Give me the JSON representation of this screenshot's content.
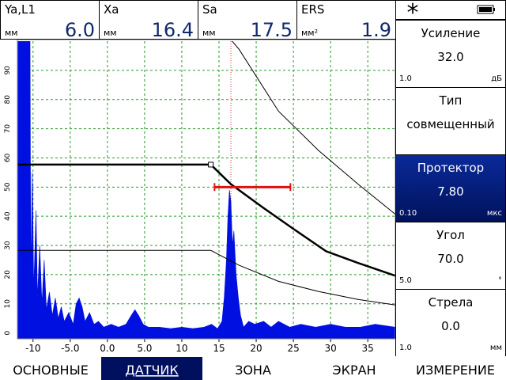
{
  "readouts": [
    {
      "label": "Ya,L1",
      "unit": "мм",
      "value": "6.0"
    },
    {
      "label": "Xa",
      "unit": "мм",
      "value": "16.4"
    },
    {
      "label": "Sa",
      "unit": "мм",
      "value": "17.5"
    },
    {
      "label": "ERS",
      "unit": "мм²",
      "value": "1.9"
    }
  ],
  "status_symbol": "*",
  "params": [
    {
      "title": "Усиление",
      "value": "32.0",
      "step": "1.0",
      "unit": "дБ"
    },
    {
      "title": "Тип",
      "value": "совмещенный"
    },
    {
      "title": "Протектор",
      "value": "7.80",
      "step": "0.10",
      "unit": "мкс",
      "selected": true
    },
    {
      "title": "Угол",
      "value": "70.0",
      "step": "5.0",
      "unit": "°"
    },
    {
      "title": "Стрела",
      "value": "0.0",
      "step": "1.0",
      "unit": "мм"
    }
  ],
  "menu": [
    {
      "label": "ОСНОВНЫЕ"
    },
    {
      "label": "ДАТЧИК",
      "selected": true
    },
    {
      "label": "ЗОНА"
    },
    {
      "label": "ЭКРАН"
    },
    {
      "label": "ИЗМЕРЕНИЕ"
    }
  ],
  "chart_data": {
    "type": "line",
    "xlim": [
      -12.1,
      38.7
    ],
    "ylim": [
      -2,
      100
    ],
    "xticks": [
      -10,
      {
        "value": -5,
        "label": "-5.0"
      },
      {
        "value": 0,
        "label": "0.0"
      },
      {
        "value": 5,
        "label": "5.0"
      },
      10,
      15,
      20,
      25,
      30,
      35
    ],
    "yticks": [
      0,
      10,
      20,
      30,
      40,
      50,
      60,
      70,
      80,
      90
    ],
    "grid": true,
    "cursor_x": 16.6,
    "cursor_color": "#e03030",
    "series": [
      {
        "type": "area",
        "color": "#0010e0",
        "x": [
          -12.1,
          -10.4,
          -10.3,
          -10.1,
          -9.9,
          -9.6,
          -9.4,
          -9.1,
          -8.8,
          -8.5,
          -8.2,
          -7.8,
          -7.4,
          -7,
          -6.6,
          -6.2,
          -5.8,
          -5.2,
          -4.6,
          -4.2,
          -3.8,
          -3.4,
          -3,
          -2.4,
          -1.8,
          -1.2,
          -0.5,
          0.5,
          1.5,
          2.5,
          3.2,
          3.7,
          4.2,
          4.8,
          5.5,
          7,
          8.5,
          10,
          11.5,
          13,
          14,
          14.8,
          15.4,
          15.7,
          16,
          16.2,
          16.4,
          16.6,
          16.8,
          17,
          17.3,
          17.6,
          17.9,
          18.3,
          19,
          19.8,
          21,
          22,
          23,
          24.5,
          26,
          28,
          30,
          32,
          34,
          36,
          38.7
        ],
        "values": [
          100,
          100,
          20,
          55,
          15,
          42,
          12,
          30,
          10,
          25,
          8,
          14,
          6,
          12,
          5,
          9,
          4,
          7,
          3,
          10,
          12,
          9,
          4,
          7,
          3,
          4,
          2,
          3,
          2,
          3,
          6,
          8,
          6,
          3,
          2,
          2,
          1.5,
          2,
          1.5,
          2,
          3,
          1.5,
          4,
          12,
          25,
          40,
          49,
          45,
          30,
          35,
          20,
          12,
          6,
          2,
          4,
          3,
          4,
          2,
          4,
          2,
          3,
          2,
          3,
          2,
          2,
          3,
          2
        ]
      },
      {
        "type": "line",
        "color": "#000000",
        "line_width": 2.5,
        "x": [
          -12.1,
          13.9,
          16.6,
          20.9,
          25.1,
          29.4,
          33.7,
          38.7
        ],
        "values": [
          57.7,
          57.7,
          51,
          43,
          35.5,
          28,
          24,
          19.6
        ]
      },
      {
        "type": "line",
        "color": "#000000",
        "line_width": 1,
        "x": [
          16.6,
          17.7,
          23,
          28.4,
          33.7,
          38.7
        ],
        "values": [
          100.5,
          97.2,
          76,
          62.5,
          51,
          40.7
        ]
      },
      {
        "type": "line",
        "color": "#000000",
        "line_width": 1,
        "x": [
          -12.1,
          13.9,
          17.7,
          23,
          28.4,
          33.7,
          38.7
        ],
        "values": [
          28.3,
          28.3,
          23.2,
          17.7,
          14.2,
          11.5,
          9.6
        ]
      },
      {
        "type": "gate",
        "color": "#e01010",
        "line_width": 3,
        "x": [
          14.4,
          24.6
        ],
        "values": [
          50,
          50
        ]
      }
    ]
  }
}
